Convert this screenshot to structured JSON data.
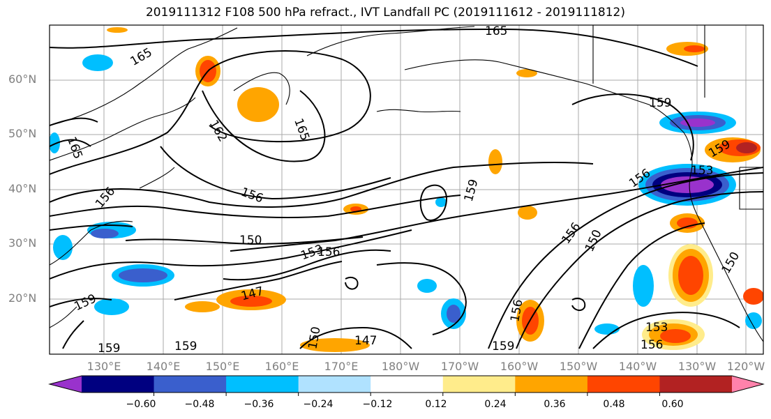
{
  "title": "2019111312 F108 500 hPa refract., IVT Landfall PC (2019111612 - 2019111812)",
  "lat_labels": [
    "60°N",
    "50°N",
    "40°N",
    "30°N",
    "20°N"
  ],
  "lon_labels": [
    "130°E",
    "140°E",
    "150°E",
    "160°E",
    "170°E",
    "180°W",
    "170°W",
    "160°W",
    "150°W",
    "140°W",
    "130°W",
    "120°W"
  ],
  "contour_labels": [
    "165",
    "165",
    "165",
    "165",
    "162",
    "159",
    "159",
    "156",
    "156",
    "156",
    "156",
    "156",
    "156",
    "153",
    "153",
    "153",
    "150",
    "150",
    "150",
    "150",
    "147",
    "147",
    "159",
    "159",
    "159",
    "159",
    "159",
    "156"
  ],
  "colorbar": {
    "ticks": [
      "−0.60",
      "−0.48",
      "−0.36",
      "−0.24",
      "−0.12",
      "0.12",
      "0.24",
      "0.36",
      "0.48",
      "0.60"
    ],
    "colors": [
      "#9932cc",
      "#000080",
      "#3a5fcd",
      "#00bfff",
      "#b0e2ff",
      "#ffffff",
      "#ffec8b",
      "#ffa500",
      "#ff4500",
      "#b22222",
      "#ff82ab"
    ]
  }
}
